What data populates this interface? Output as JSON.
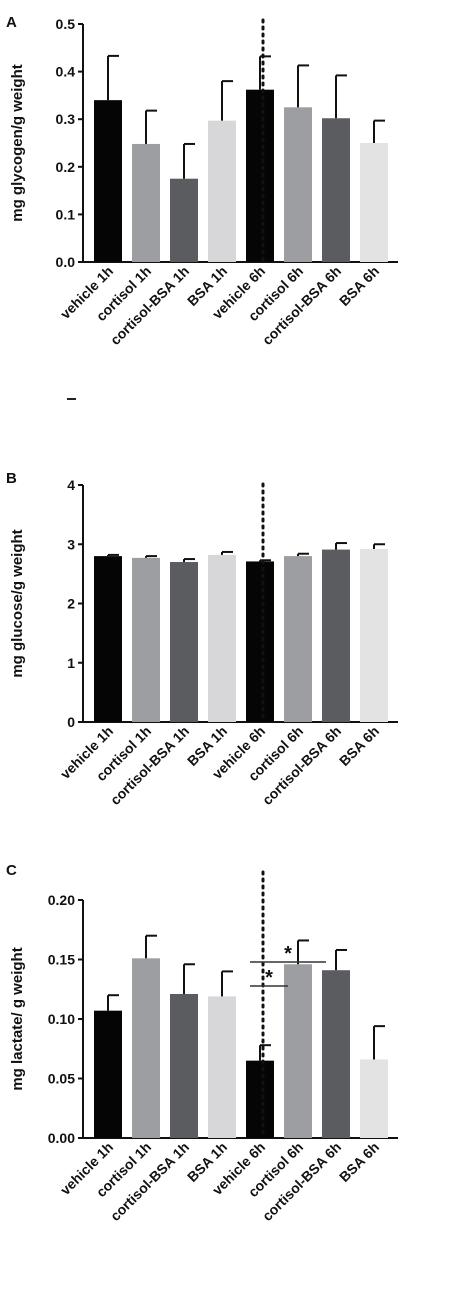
{
  "panels": [
    {
      "letter": "A"
    },
    {
      "letter": "B"
    },
    {
      "letter": "C"
    }
  ],
  "chart_data": [
    {
      "type": "bar",
      "categories": [
        "vehicle 1h",
        "cortisol 1h",
        "cortisol-BSA 1h",
        "BSA 1h",
        "vehicle 6h",
        "cortisol 6h",
        "cortisol-BSA 6h",
        "BSA 6h"
      ],
      "values": [
        0.34,
        0.248,
        0.175,
        0.297,
        0.362,
        0.325,
        0.302,
        0.25
      ],
      "errors": [
        0.093,
        0.07,
        0.073,
        0.083,
        0.07,
        0.088,
        0.09,
        0.047
      ],
      "ylabel": "mg glycogen/g weight",
      "yticks": [
        "0.0",
        "0.1",
        "0.2",
        "0.3",
        "0.4",
        "0.5"
      ],
      "ylim": [
        0,
        0.5
      ],
      "separator_after_index": 3,
      "colors": [
        "#050505",
        "#9d9ea2",
        "#5b5c60",
        "#d7d7d9",
        "#050505",
        "#9d9ea2",
        "#5b5c60",
        "#e3e3e4"
      ],
      "grid": false,
      "annotations": []
    },
    {
      "type": "bar",
      "categories": [
        "vehicle 1h",
        "cortisol 1h",
        "cortisol-BSA 1h",
        "BSA 1h",
        "vehicle 6h",
        "cortisol 6h",
        "cortisol-BSA 6h",
        "BSA 6h"
      ],
      "values": [
        2.8,
        2.77,
        2.7,
        2.82,
        2.71,
        2.8,
        2.91,
        2.92
      ],
      "errors": [
        0.02,
        0.03,
        0.05,
        0.05,
        0.02,
        0.04,
        0.11,
        0.08
      ],
      "ylabel": "mg glucose/g weight",
      "yticks": [
        "0",
        "1",
        "2",
        "3",
        "4"
      ],
      "ylim": [
        0,
        4
      ],
      "separator_after_index": 3,
      "colors": [
        "#050505",
        "#9d9ea2",
        "#5b5c60",
        "#d7d7d9",
        "#050505",
        "#9d9ea2",
        "#5b5c60",
        "#e3e3e4"
      ],
      "grid": false,
      "annotations": []
    },
    {
      "type": "bar",
      "categories": [
        "vehicle 1h",
        "cortisol 1h",
        "cortisol-BSA 1h",
        "BSA 1h",
        "vehicle 6h",
        "cortisol 6h",
        "cortisol-BSA 6h",
        "BSA 6h"
      ],
      "values": [
        0.107,
        0.151,
        0.121,
        0.119,
        0.065,
        0.146,
        0.141,
        0.066
      ],
      "errors": [
        0.013,
        0.019,
        0.025,
        0.021,
        0.013,
        0.02,
        0.017,
        0.028
      ],
      "ylabel": "mg lactate/ g weight",
      "yticks": [
        "0.00",
        "0.05",
        "0.10",
        "0.15",
        "0.20"
      ],
      "ylim": [
        0,
        0.2
      ],
      "separator_after_index": 3,
      "colors": [
        "#050505",
        "#9d9ea2",
        "#5b5c60",
        "#d7d7d9",
        "#050505",
        "#9d9ea2",
        "#5b5c60",
        "#e3e3e4"
      ],
      "grid": false,
      "annotations": [
        {
          "text": "*",
          "from": "vehicle 6h",
          "to": "cortisol 6h"
        },
        {
          "text": "*",
          "from": "vehicle 6h",
          "to": "cortisol-BSA 6h"
        }
      ]
    }
  ]
}
